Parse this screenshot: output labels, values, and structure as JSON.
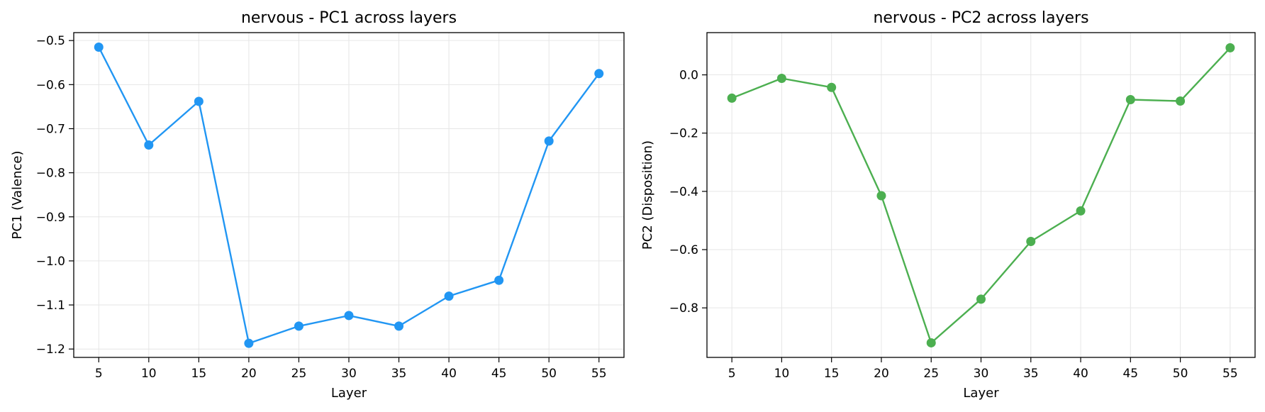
{
  "chart_data": [
    {
      "type": "line",
      "title": "nervous - PC1 across layers",
      "xlabel": "Layer",
      "ylabel": "PC1 (Valence)",
      "x": [
        5,
        10,
        15,
        20,
        25,
        30,
        35,
        40,
        45,
        50,
        55
      ],
      "xticks": [
        "5",
        "10",
        "15",
        "20",
        "25",
        "30",
        "35",
        "40",
        "45",
        "50",
        "55"
      ],
      "yticks": [
        "−0.5",
        "−0.6",
        "−0.7",
        "−0.8",
        "−0.9",
        "−1.0",
        "−1.1",
        "−1.2"
      ],
      "ytick_values": [
        -0.5,
        -0.6,
        -0.7,
        -0.8,
        -0.9,
        -1.0,
        -1.1,
        -1.2
      ],
      "xlim": [
        2.5,
        57.5
      ],
      "ylim": [
        -1.219,
        -0.482
      ],
      "grid": true,
      "series": [
        {
          "color": "#2196F3",
          "values": [
            -0.515,
            -0.737,
            -0.638,
            -1.187,
            -1.148,
            -1.124,
            -1.148,
            -1.08,
            -1.044,
            -0.728,
            -0.575
          ]
        }
      ]
    },
    {
      "type": "line",
      "title": "nervous - PC2 across layers",
      "xlabel": "Layer",
      "ylabel": "PC2 (Disposition)",
      "x": [
        5,
        10,
        15,
        20,
        25,
        30,
        35,
        40,
        45,
        50,
        55
      ],
      "xticks": [
        "5",
        "10",
        "15",
        "20",
        "25",
        "30",
        "35",
        "40",
        "45",
        "50",
        "55"
      ],
      "yticks": [
        "0.0",
        "−0.2",
        "−0.4",
        "−0.6",
        "−0.8"
      ],
      "ytick_values": [
        0.0,
        -0.2,
        -0.4,
        -0.6,
        -0.8
      ],
      "xlim": [
        2.5,
        57.5
      ],
      "ylim": [
        -0.97,
        0.145
      ],
      "grid": true,
      "series": [
        {
          "color": "#4CAF50",
          "values": [
            -0.08,
            -0.012,
            -0.043,
            -0.415,
            -0.92,
            -0.77,
            -0.572,
            -0.467,
            -0.085,
            -0.09,
            0.093
          ]
        }
      ]
    }
  ]
}
